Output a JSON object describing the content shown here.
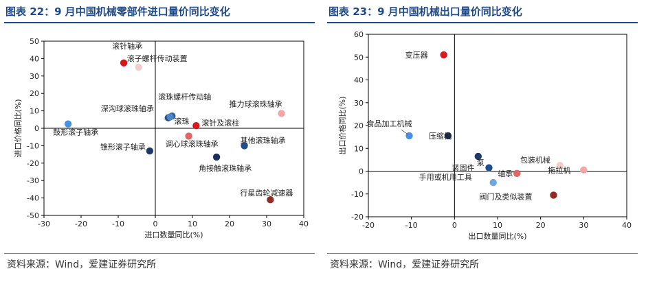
{
  "left_panel": {
    "title": "图表 22：9 月中国机械零部件进口量价同比变化",
    "source": "资料来源：Wind，爱建证券研究所"
  },
  "right_panel": {
    "title": "图表 23：9 月中国机械出口量价同比变化",
    "source": "资料来源：Wind，爱建证券研究所"
  },
  "chart_data": [
    {
      "type": "scatter",
      "title": "9 月中国机械零部件进口量价同比变化",
      "xlabel": "进口数量同比(%)",
      "ylabel": "进口价格同比(%)",
      "xlim": [
        -30,
        40
      ],
      "ylim": [
        -50,
        50
      ],
      "xticks": [
        -30,
        -20,
        -10,
        0,
        10,
        20,
        30,
        40
      ],
      "yticks": [
        -50,
        -40,
        -30,
        -20,
        -10,
        0,
        10,
        20,
        30,
        40,
        50
      ],
      "grid": false,
      "points": [
        {
          "name": "滚针轴承",
          "x": -8.5,
          "y": 37.5,
          "color": "#d7191c"
        },
        {
          "name": "滚子螺杆传动装置",
          "x": -4.5,
          "y": 35,
          "color": "#f4cccc"
        },
        {
          "name": "滚珠螺杆传动轴",
          "x": 4.5,
          "y": 7,
          "color": "#2e5b9a"
        },
        {
          "name": "深沟球滚珠轴承",
          "x": 3.5,
          "y": 6,
          "color": "#1f4e8c"
        },
        {
          "name": "滚珠",
          "x": 4,
          "y": 6.5,
          "color": "#4a86c8"
        },
        {
          "name": "滚针及滚柱",
          "x": 11,
          "y": 1.5,
          "color": "#d7191c"
        },
        {
          "name": "推力球滚珠轴承",
          "x": 34,
          "y": 8.5,
          "color": "#f4a6a6"
        },
        {
          "name": "鼓形滚子轴承",
          "x": -23.5,
          "y": 2.5,
          "color": "#4a90e2"
        },
        {
          "name": "锥形滚子轴承",
          "x": -1.5,
          "y": -13,
          "color": "#1f3a68"
        },
        {
          "name": "调心球滚珠轴承",
          "x": 9,
          "y": -4.5,
          "color": "#e06666"
        },
        {
          "name": "其他滚珠轴承",
          "x": 24,
          "y": -10,
          "color": "#1f4e8c"
        },
        {
          "name": "角接触滚珠轴承",
          "x": 16.5,
          "y": -16.5,
          "color": "#1a2f5a"
        },
        {
          "name": "行星齿轮减速器",
          "x": 31,
          "y": -41,
          "color": "#922b21"
        }
      ]
    },
    {
      "type": "scatter",
      "title": "9 月中国机械出口量价同比变化",
      "xlabel": "出口数量同比(%)",
      "ylabel": "出口价格同比(%)",
      "xlim": [
        -20,
        40
      ],
      "ylim": [
        -20,
        60
      ],
      "xticks": [
        -20,
        -10,
        0,
        10,
        20,
        30,
        40
      ],
      "yticks": [
        -20,
        -10,
        0,
        10,
        20,
        30,
        40,
        50,
        60
      ],
      "grid": false,
      "points": [
        {
          "name": "变压器",
          "x": -2.5,
          "y": 51,
          "color": "#d7191c"
        },
        {
          "name": "食品加工机械",
          "x": -10.5,
          "y": 15.5,
          "color": "#4a90e2"
        },
        {
          "name": "压缩机",
          "x": -1.5,
          "y": 15.5,
          "color": "#1a2f5a"
        },
        {
          "name": "泵",
          "x": 5.5,
          "y": 6.5,
          "color": "#1f3a68"
        },
        {
          "name": "紧固件",
          "x": 8,
          "y": 1.5,
          "color": "#1f4e8c"
        },
        {
          "name": "包装机械",
          "x": 24.5,
          "y": 2.5,
          "color": "#f4cccc"
        },
        {
          "name": "拖拉机",
          "x": 30,
          "y": 0.5,
          "color": "#f4a6a6"
        },
        {
          "name": "轴承",
          "x": 14.5,
          "y": -1,
          "color": "#e06666"
        },
        {
          "name": "手用或机用工具",
          "x": 9,
          "y": -5,
          "color": "#6fa8dc"
        },
        {
          "name": "阀门及类似装置",
          "x": 23,
          "y": -10.5,
          "color": "#922b21"
        }
      ]
    }
  ]
}
